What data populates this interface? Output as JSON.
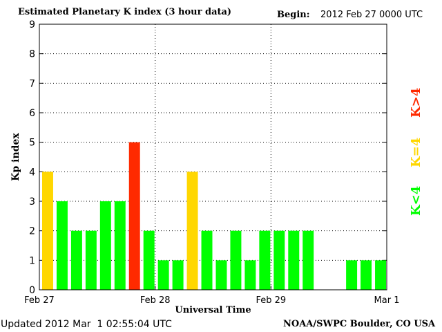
{
  "header": {
    "title": "Estimated Planetary K index (3 hour data)",
    "begin_label": "Begin:",
    "begin_value": "2012 Feb 27 0000 UTC"
  },
  "footer": {
    "updated": "Updated 2012 Mar  1 02:55:04 UTC",
    "source": "NOAA/SWPC Boulder, CO USA"
  },
  "legend": {
    "above": "K>4",
    "equal": "K=4",
    "below": "K<4"
  },
  "colors": {
    "below": "#00ff00",
    "equal": "#ffd700",
    "above": "#ff2a00"
  },
  "chart_data": {
    "type": "bar",
    "title": "Estimated Planetary K index (3 hour data)",
    "xlabel": "Universal Time",
    "ylabel": "Kp index",
    "ylim": [
      0,
      9
    ],
    "yticks": [
      0,
      1,
      2,
      3,
      4,
      5,
      6,
      7,
      8,
      9
    ],
    "xticks": [
      "Feb 27",
      "Feb 28",
      "Feb 29",
      "Mar 1"
    ],
    "grid": true,
    "interval_hours": 3,
    "values": [
      4,
      3,
      2,
      2,
      3,
      3,
      5,
      2,
      1,
      1,
      4,
      2,
      1,
      2,
      1,
      2,
      2,
      2,
      2,
      null,
      null,
      1,
      1,
      1
    ]
  }
}
